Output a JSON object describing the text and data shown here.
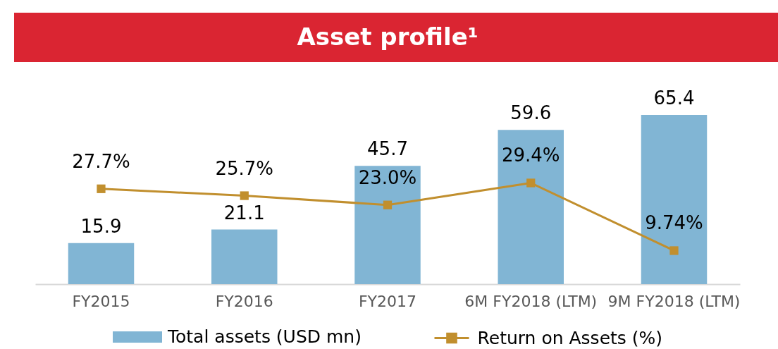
{
  "chart_data": {
    "type": "bar",
    "title": "Asset profile¹",
    "categories": [
      "FY2015",
      "FY2016",
      "FY2017",
      "6M FY2018 (LTM)",
      "9M FY2018 (LTM)"
    ],
    "series": [
      {
        "name": "Total assets (USD mn)",
        "color": "#81b5d4",
        "values": [
          15.9,
          21.1,
          45.7,
          59.6,
          65.4
        ],
        "value_labels": [
          "15.9",
          "21.1",
          "45.7",
          "59.6",
          "65.4"
        ]
      },
      {
        "name": "Return on Assets (%)",
        "type": "line",
        "axis": "y2",
        "color": "#c18f2e",
        "values": [
          27.7,
          25.7,
          23.0,
          29.4,
          9.74
        ],
        "value_labels": [
          "27.7%",
          "25.7%",
          "23.0%",
          "29.4%",
          "9.74%"
        ]
      }
    ],
    "marker": "square",
    "line_style": "solid",
    "legend": "bottom",
    "tick_labels": "x"
  }
}
